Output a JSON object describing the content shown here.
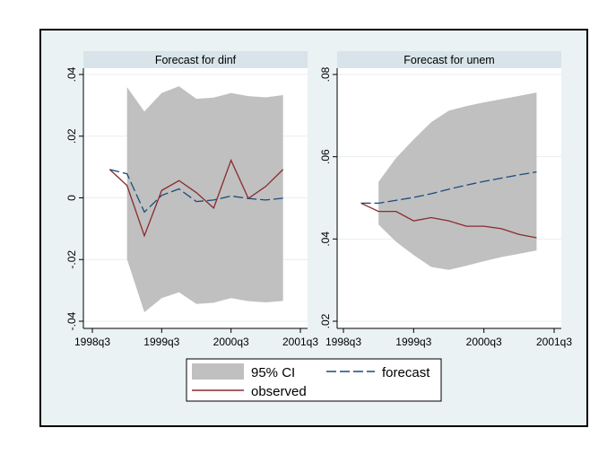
{
  "chart_data": [
    {
      "type": "area",
      "title": "Forecast for dinf",
      "x_tick_labels": [
        "1998q3",
        "1999q3",
        "2000q3",
        "2001q3"
      ],
      "x_ticks_quarter_index": [
        0,
        4,
        8,
        12
      ],
      "x_range_quarter_index": [
        0,
        12
      ],
      "y_tick_labels": [
        "-.04",
        "-.02",
        "0",
        ".02",
        ".04"
      ],
      "y_ticks": [
        -0.04,
        -0.02,
        0,
        0.02,
        0.04
      ],
      "ylim": [
        -0.04,
        0.04
      ],
      "grid": true,
      "observed": {
        "x": [
          1,
          2,
          3,
          4,
          5,
          6,
          7,
          8,
          9,
          10,
          11
        ],
        "values": [
          0.0092,
          0.004,
          -0.0123,
          0.0024,
          0.0056,
          0.0017,
          -0.0033,
          0.0122,
          -0.0002,
          0.0037,
          0.0092
        ]
      },
      "forecast": {
        "x": [
          1,
          2,
          3,
          4,
          5,
          6,
          7,
          8,
          9,
          10,
          11
        ],
        "values": [
          0.0092,
          0.0078,
          -0.0046,
          0.0008,
          0.0029,
          -0.0012,
          -0.0007,
          0.0006,
          -0.0002,
          -0.0007,
          -0.0001
        ]
      },
      "ci": {
        "x": [
          2,
          3,
          4,
          5,
          6,
          7,
          8,
          9,
          10,
          11
        ],
        "upper": [
          0.0359,
          0.028,
          0.034,
          0.0362,
          0.0321,
          0.0325,
          0.034,
          0.033,
          0.0326,
          0.0333
        ],
        "lower": [
          -0.0199,
          -0.0371,
          -0.0325,
          -0.0306,
          -0.0344,
          -0.034,
          -0.0325,
          -0.0335,
          -0.0339,
          -0.0334
        ]
      }
    },
    {
      "type": "area",
      "title": "Forecast for unem",
      "x_tick_labels": [
        "1998q3",
        "1999q3",
        "2000q3",
        "2001q3"
      ],
      "x_ticks_quarter_index": [
        0,
        4,
        8,
        12
      ],
      "x_range_quarter_index": [
        0,
        12
      ],
      "y_tick_labels": [
        ".02",
        ".04",
        ".06",
        ".08"
      ],
      "y_ticks": [
        0.02,
        0.04,
        0.06,
        0.08
      ],
      "ylim": [
        0.02,
        0.08
      ],
      "grid": true,
      "observed": {
        "x": [
          1,
          2,
          3,
          4,
          5,
          6,
          7,
          8,
          9,
          10,
          11
        ],
        "values": [
          0.0487,
          0.0467,
          0.0467,
          0.0444,
          0.0452,
          0.0444,
          0.0431,
          0.0431,
          0.0425,
          0.0411,
          0.0403
        ]
      },
      "forecast": {
        "x": [
          1,
          2,
          3,
          4,
          5,
          6,
          7,
          8,
          9,
          10,
          11
        ],
        "values": [
          0.0487,
          0.0487,
          0.0494,
          0.0501,
          0.051,
          0.0521,
          0.0531,
          0.054,
          0.0548,
          0.0556,
          0.0563
        ]
      },
      "ci": {
        "x": [
          2,
          3,
          4,
          5,
          6,
          7,
          8,
          9,
          10,
          11
        ],
        "upper": [
          0.0539,
          0.0597,
          0.0642,
          0.0684,
          0.0712,
          0.0723,
          0.0732,
          0.074,
          0.0748,
          0.0756
        ],
        "lower": [
          0.0435,
          0.0393,
          0.0361,
          0.0332,
          0.0325,
          0.0335,
          0.0346,
          0.0356,
          0.0364,
          0.0372
        ]
      }
    }
  ],
  "legend": {
    "placement": "bottom",
    "ci_label": "95% CI",
    "forecast_label": "forecast",
    "observed_label": "observed"
  },
  "colors": {
    "background": "#eaf2f3",
    "title_strip": "#d8e4ea",
    "ci_fill": "#c0c0c0",
    "forecast": "#1a4a7a",
    "observed": "#8b2a2f",
    "grid": "#e8eef0"
  }
}
